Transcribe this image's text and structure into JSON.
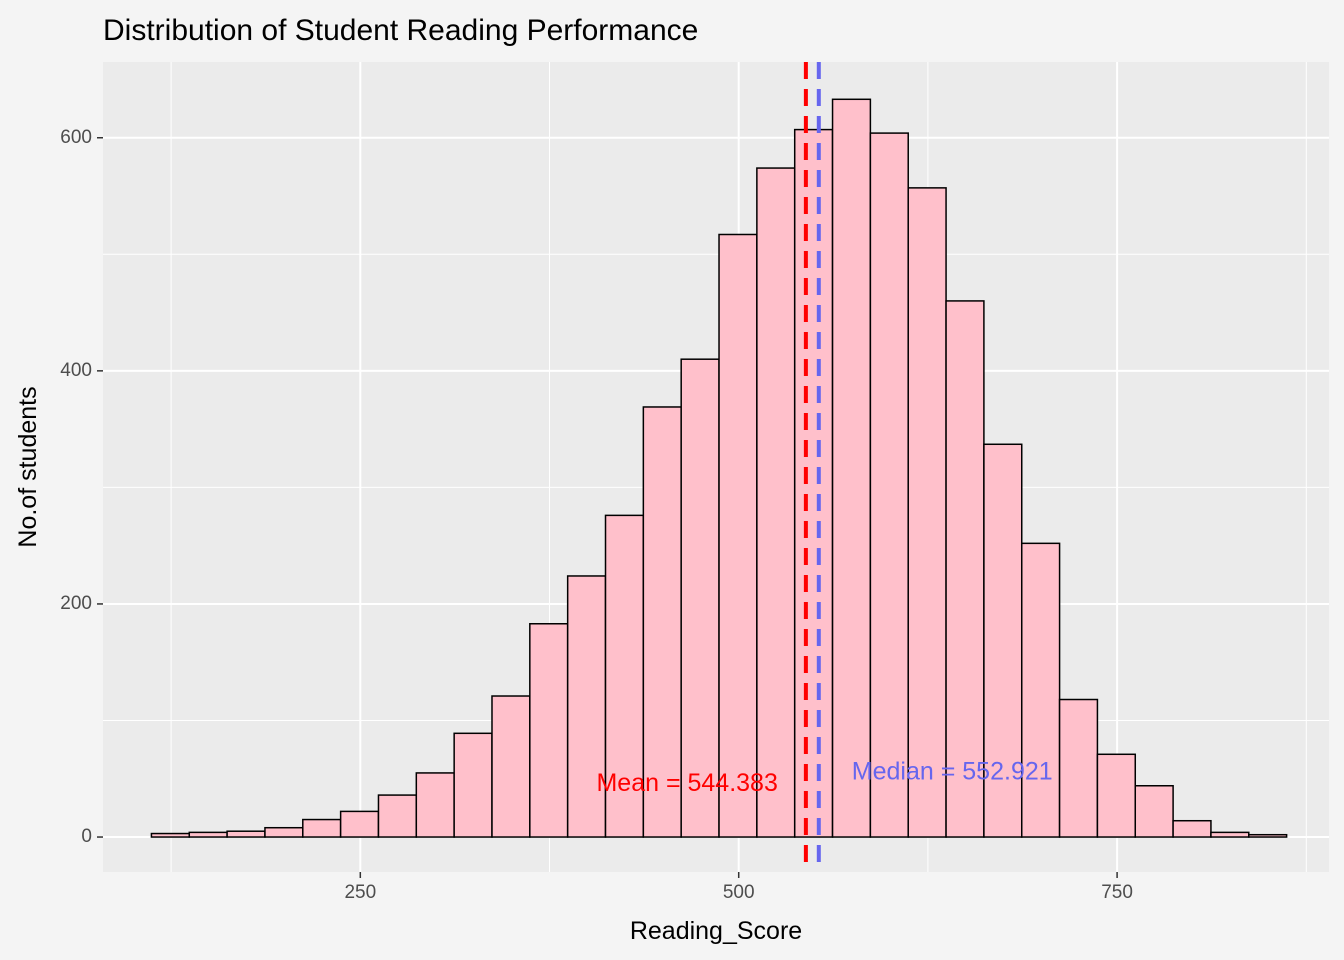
{
  "chart_data": {
    "type": "bar",
    "subtype": "histogram",
    "title": "Distribution of Student Reading Performance",
    "xlabel": "Reading_Score",
    "ylabel": "No.of students",
    "xlim": [
      80,
      890
    ],
    "ylim": [
      -30,
      665
    ],
    "x_ticks": [
      250,
      500,
      750
    ],
    "x_tick_labels": [
      "250",
      "500",
      "750"
    ],
    "y_ticks": [
      0,
      200,
      400,
      600
    ],
    "y_tick_labels": [
      "0",
      "200",
      "400",
      "600"
    ],
    "grid": true,
    "bin_width": 25,
    "bin_start": 112,
    "values": [
      3,
      4,
      5,
      8,
      15,
      22,
      36,
      55,
      89,
      121,
      183,
      224,
      276,
      369,
      410,
      517,
      574,
      607,
      633,
      604,
      557,
      460,
      337,
      252,
      118,
      71,
      44,
      14,
      4,
      2
    ],
    "bar_fill": "#ffc0cb",
    "bar_stroke": "#000000",
    "reference_lines": [
      {
        "label": "Mean = 544.383",
        "value": 544.383,
        "color": "#ff0000"
      },
      {
        "label": "Median = 552.921",
        "value": 552.921,
        "color": "#6666ee"
      }
    ],
    "panel_background": "#ebebeb",
    "page_background": "#f4f4f4"
  }
}
